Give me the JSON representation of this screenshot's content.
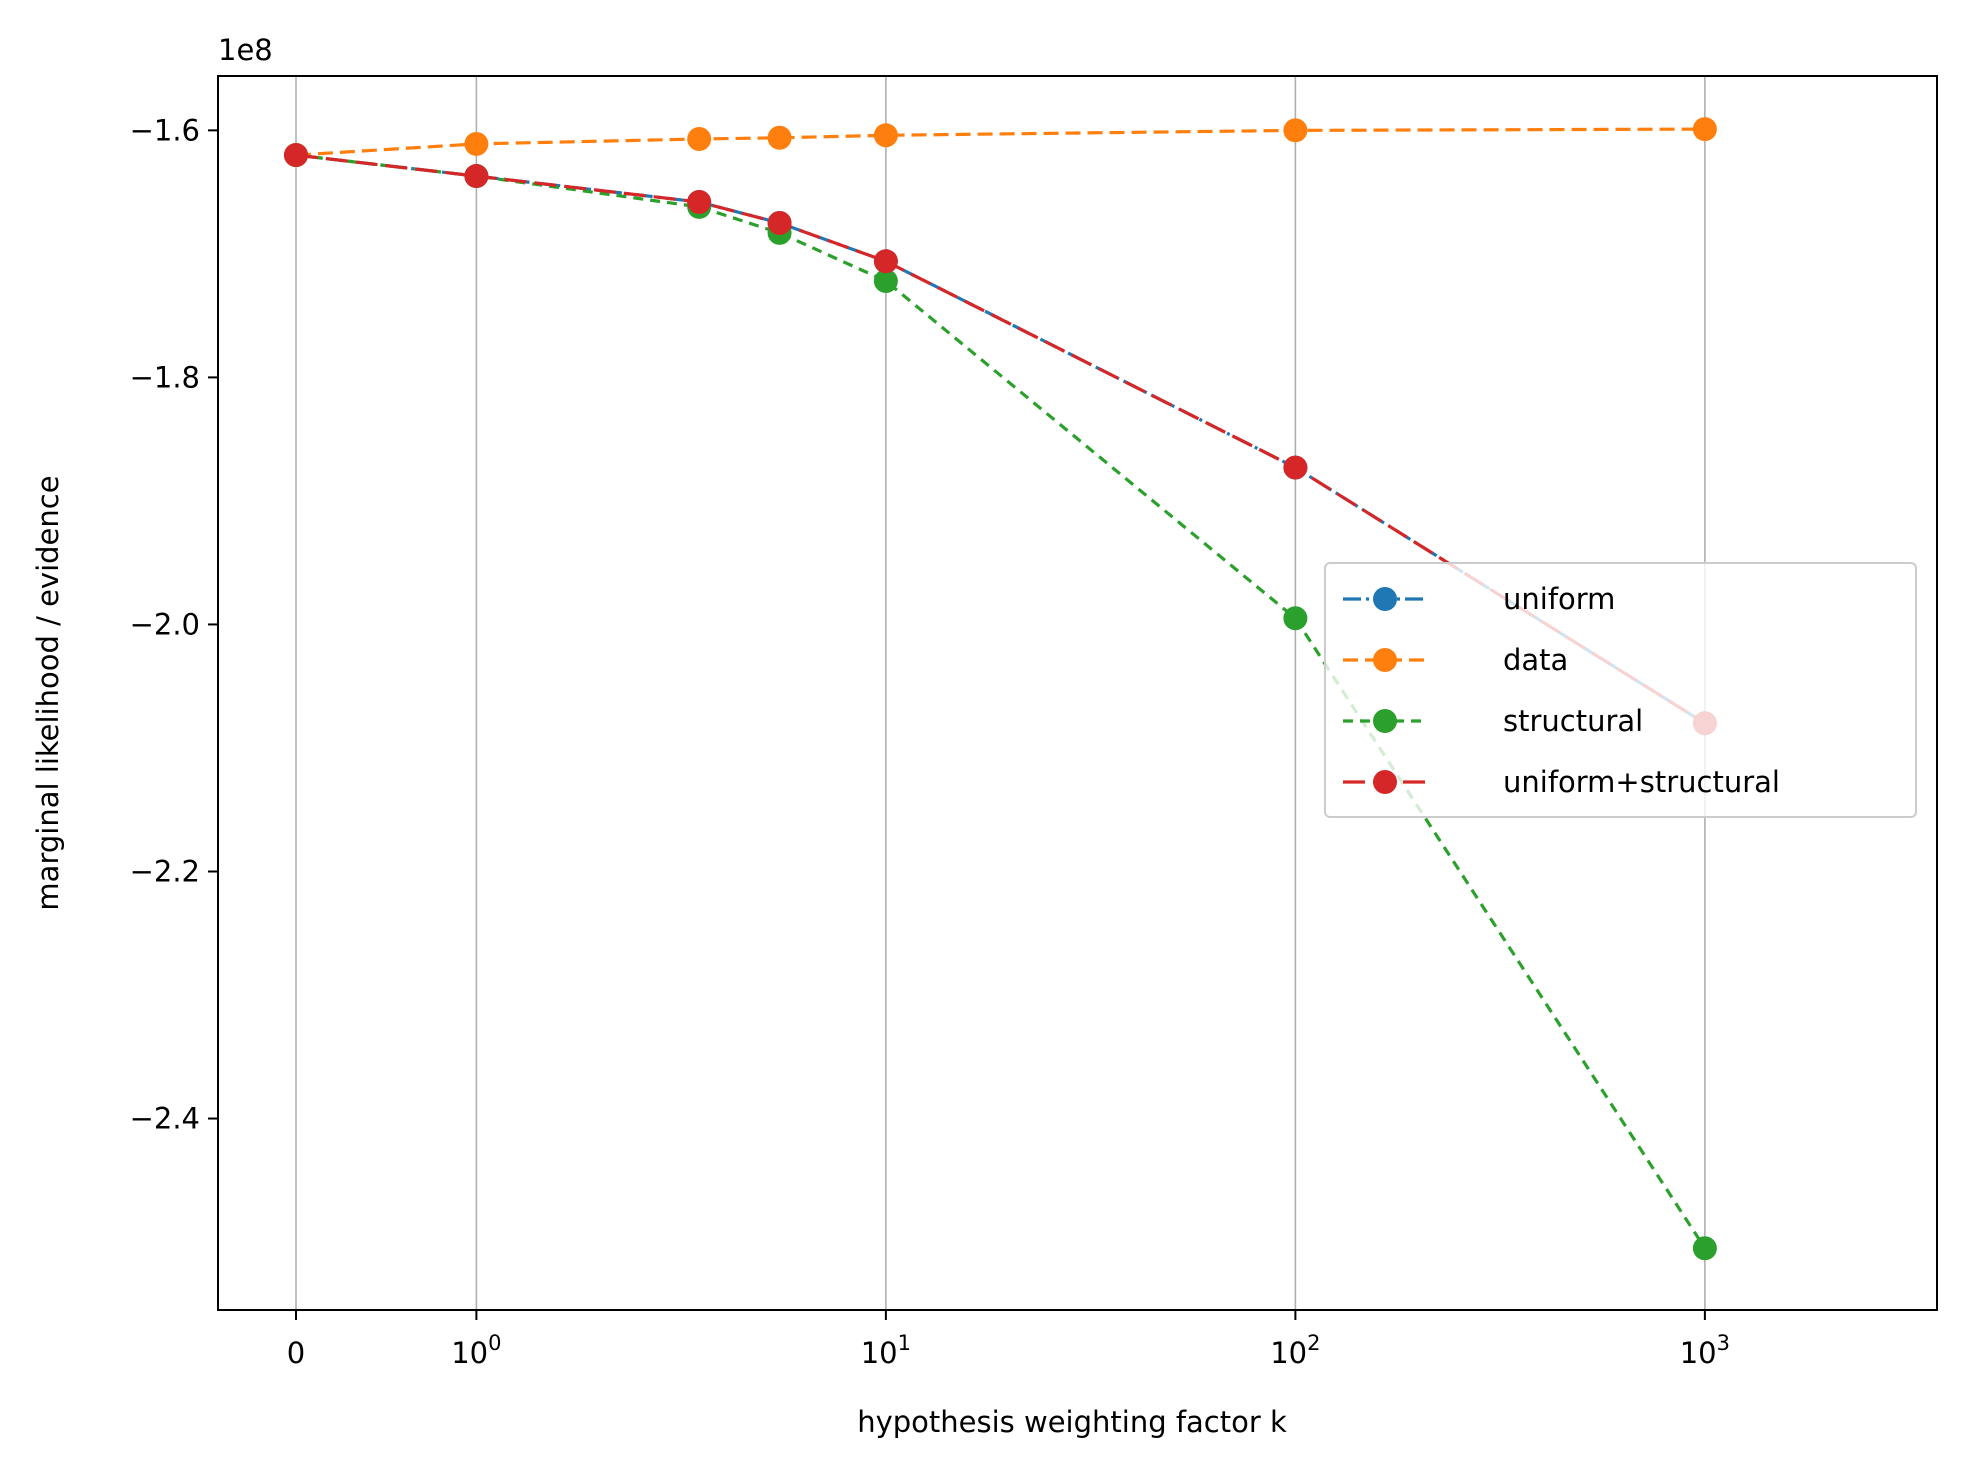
{
  "chart_data": {
    "type": "line",
    "title": "",
    "xlabel": "hypothesis weighting factor k",
    "ylabel": "marginal likelihood / evidence",
    "y_scale_label": "1e8",
    "x_scale": "symlog",
    "x_ticks": [
      {
        "value": 0,
        "base": "0",
        "exp": ""
      },
      {
        "value": 1,
        "base": "10",
        "exp": "0"
      },
      {
        "value": 10,
        "base": "10",
        "exp": "1"
      },
      {
        "value": 100,
        "base": "10",
        "exp": "2"
      },
      {
        "value": 1000,
        "base": "10",
        "exp": "3"
      }
    ],
    "y_ticks": [
      {
        "value": -1.6,
        "label": "−1.6"
      },
      {
        "value": -1.8,
        "label": "−1.8"
      },
      {
        "value": -2.0,
        "label": "−2.0"
      },
      {
        "value": -2.2,
        "label": "−2.2"
      },
      {
        "value": -2.4,
        "label": "−2.4"
      }
    ],
    "ylim": [
      -2.555,
      -1.556
    ],
    "grid": "vertical",
    "legend_position": "center-right",
    "x": [
      0,
      1,
      3.5,
      5.5,
      10,
      100,
      1000
    ],
    "series": [
      {
        "name": "uniform",
        "color": "#1f77b4",
        "dash": "dashdot",
        "values": [
          -1.62,
          -1.637,
          -1.658,
          -1.675,
          -1.706,
          -1.873,
          -2.08
        ]
      },
      {
        "name": "data",
        "color": "#ff7f0e",
        "dash": "dashed",
        "values": [
          -1.62,
          -1.611,
          -1.607,
          -1.606,
          -1.604,
          -1.6,
          -1.599
        ]
      },
      {
        "name": "structural",
        "color": "#2ca02c",
        "dash": "dotted",
        "values": [
          -1.62,
          -1.637,
          -1.662,
          -1.683,
          -1.722,
          -1.995,
          -2.505
        ]
      },
      {
        "name": "uniform+structural",
        "color": "#d62728",
        "dash": "longdash",
        "values": [
          -1.62,
          -1.637,
          -1.658,
          -1.675,
          -1.706,
          -1.873,
          -2.08
        ]
      }
    ]
  }
}
